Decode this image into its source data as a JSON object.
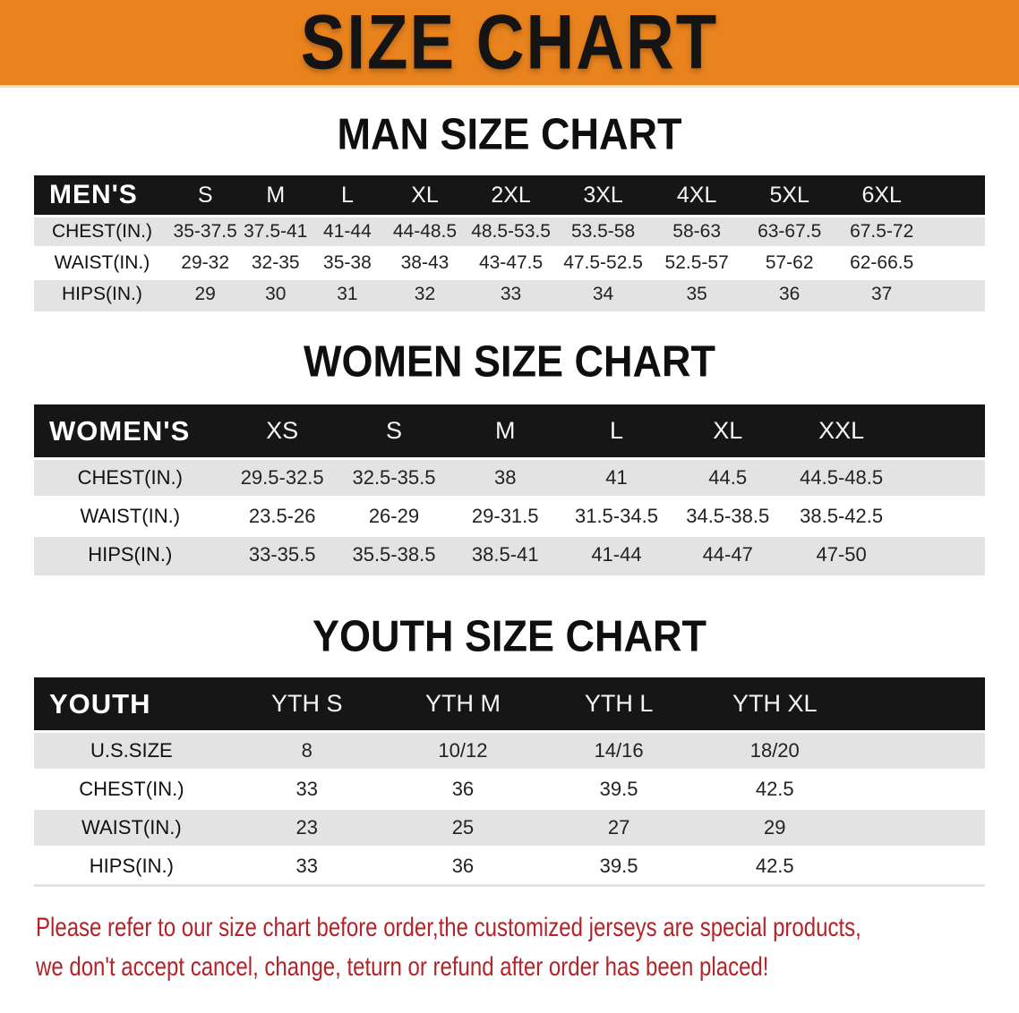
{
  "banner": {
    "title": "SIZE CHART",
    "bg_color": "#E8831E"
  },
  "colors": {
    "table_header_bg": "#161616",
    "row_stripe": "#E3E3E3",
    "disclaimer_red": "#B32328"
  },
  "sections": [
    {
      "title": "MAN SIZE CHART",
      "group_label": "MEN'S",
      "sizes": [
        "S",
        "M",
        "L",
        "XL",
        "2XL",
        "3XL",
        "4XL",
        "5XL",
        "6XL"
      ],
      "rows": [
        {
          "label": "CHEST(IN.)",
          "values": [
            "35-37.5",
            "37.5-41",
            "41-44",
            "44-48.5",
            "48.5-53.5",
            "53.5-58",
            "58-63",
            "63-67.5",
            "67.5-72"
          ]
        },
        {
          "label": "WAIST(IN.)",
          "values": [
            "29-32",
            "32-35",
            "35-38",
            "38-43",
            "43-47.5",
            "47.5-52.5",
            "52.5-57",
            "57-62",
            "62-66.5"
          ]
        },
        {
          "label": "HIPS(IN.)",
          "values": [
            "29",
            "30",
            "31",
            "32",
            "33",
            "34",
            "35",
            "36",
            "37"
          ]
        }
      ]
    },
    {
      "title": "WOMEN SIZE CHART",
      "group_label": "WOMEN'S",
      "sizes": [
        "XS",
        "S",
        "M",
        "L",
        "XL",
        "XXL"
      ],
      "rows": [
        {
          "label": "CHEST(IN.)",
          "values": [
            "29.5-32.5",
            "32.5-35.5",
            "38",
            "41",
            "44.5",
            "44.5-48.5"
          ]
        },
        {
          "label": "WAIST(IN.)",
          "values": [
            "23.5-26",
            "26-29",
            "29-31.5",
            "31.5-34.5",
            "34.5-38.5",
            "38.5-42.5"
          ]
        },
        {
          "label": "HIPS(IN.)",
          "values": [
            "33-35.5",
            "35.5-38.5",
            "38.5-41",
            "41-44",
            "44-47",
            "47-50"
          ]
        }
      ]
    },
    {
      "title": "YOUTH SIZE CHART",
      "group_label": "YOUTH",
      "sizes": [
        "YTH S",
        "YTH M",
        "YTH L",
        "YTH XL"
      ],
      "rows": [
        {
          "label": "U.S.SIZE",
          "values": [
            "8",
            "10/12",
            "14/16",
            "18/20"
          ]
        },
        {
          "label": "CHEST(IN.)",
          "values": [
            "33",
            "36",
            "39.5",
            "42.5"
          ]
        },
        {
          "label": "WAIST(IN.)",
          "values": [
            "23",
            "25",
            "27",
            "29"
          ]
        },
        {
          "label": "HIPS(IN.)",
          "values": [
            "33",
            "36",
            "39.5",
            "42.5"
          ]
        }
      ]
    }
  ],
  "disclaimer": {
    "line1": "Please refer to our size chart before order,the customized jerseys are special products,",
    "line2": "we don't accept cancel, change, teturn or refund after order has been placed!"
  }
}
